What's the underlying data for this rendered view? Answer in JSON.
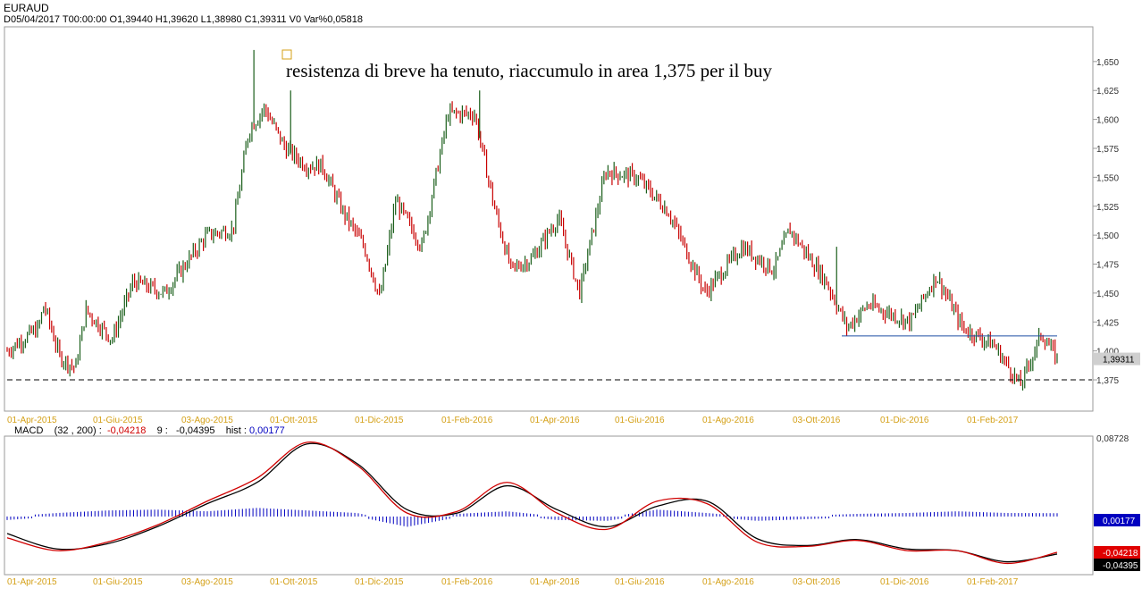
{
  "header": {
    "symbol": "EURAUD",
    "fields": [
      {
        "key": "D",
        "value": "05/04/2017"
      },
      {
        "key": "T",
        "value": "00:00:00"
      },
      {
        "key": "O",
        "value": "1,39440"
      },
      {
        "key": "H",
        "value": "1,39620"
      },
      {
        "key": "L",
        "value": "1,38980"
      },
      {
        "key": "C",
        "value": "1,39311"
      },
      {
        "key": "V",
        "value": "0"
      },
      {
        "key": "Var%",
        "value": "0,05818"
      }
    ]
  },
  "annotation": "resistenza di breve ha tenuto, riaccumulo in area 1,375 per il buy",
  "price_tag": "1,39311",
  "macd_header": {
    "label": "MACD",
    "params": "(32 , 200) :",
    "macd_value": "-0,04218",
    "signal_label": "9 :",
    "signal_value": "-0,04395",
    "hist_label": "hist :",
    "hist_value": "0,00177"
  },
  "macd_tags": {
    "top": "0,08728",
    "hist": "0,00177",
    "macd": "-0,04218",
    "signal": "-0,04395"
  },
  "colors": {
    "up": "#1a5e1a",
    "down": "#c80000",
    "axis_label": "#d4a017",
    "hist": "#0000c0",
    "macd": "#d00000",
    "signal": "#000000"
  },
  "chart_data": [
    {
      "type": "candlestick",
      "title": "EURAUD",
      "x_ticks": [
        "01-Apr-2015",
        "01-Giu-2015",
        "03-Ago-2015",
        "01-Ott-2015",
        "01-Dic-2015",
        "01-Feb-2016",
        "01-Apr-2016",
        "01-Giu-2016",
        "01-Ago-2016",
        "03-Ott-2016",
        "01-Dic-2016",
        "01-Feb-2017"
      ],
      "y_ticks": [
        "1,650",
        "1,625",
        "1,600",
        "1,575",
        "1,550",
        "1,525",
        "1,500",
        "1,475",
        "1,450",
        "1,425",
        "1,400",
        "1,375"
      ],
      "ylim": [
        1.348,
        1.68
      ],
      "grid": false,
      "last_close": 1.39311,
      "support_level": 1.375,
      "resistance_level": 1.413,
      "path": [
        {
          "t": 0,
          "p": 1.4
        },
        {
          "t": 0.03,
          "p": 1.42
        },
        {
          "t": 0.035,
          "p": 1.44
        },
        {
          "t": 0.05,
          "p": 1.395
        },
        {
          "t": 0.065,
          "p": 1.385
        },
        {
          "t": 0.075,
          "p": 1.435
        },
        {
          "t": 0.1,
          "p": 1.41
        },
        {
          "t": 0.12,
          "p": 1.46
        },
        {
          "t": 0.15,
          "p": 1.45
        },
        {
          "t": 0.19,
          "p": 1.5
        },
        {
          "t": 0.215,
          "p": 1.505
        },
        {
          "t": 0.23,
          "p": 1.59
        },
        {
          "t": 0.245,
          "p": 1.61
        },
        {
          "t": 0.265,
          "p": 1.575
        },
        {
          "t": 0.285,
          "p": 1.56
        },
        {
          "t": 0.3,
          "p": 1.56
        },
        {
          "t": 0.32,
          "p": 1.52
        },
        {
          "t": 0.34,
          "p": 1.49
        },
        {
          "t": 0.355,
          "p": 1.445
        },
        {
          "t": 0.37,
          "p": 1.53
        },
        {
          "t": 0.395,
          "p": 1.49
        },
        {
          "t": 0.42,
          "p": 1.605
        },
        {
          "t": 0.445,
          "p": 1.605
        },
        {
          "t": 0.465,
          "p": 1.52
        },
        {
          "t": 0.48,
          "p": 1.47
        },
        {
          "t": 0.5,
          "p": 1.48
        },
        {
          "t": 0.525,
          "p": 1.515
        },
        {
          "t": 0.545,
          "p": 1.45
        },
        {
          "t": 0.57,
          "p": 1.555
        },
        {
          "t": 0.6,
          "p": 1.55
        },
        {
          "t": 0.63,
          "p": 1.52
        },
        {
          "t": 0.665,
          "p": 1.45
        },
        {
          "t": 0.7,
          "p": 1.49
        },
        {
          "t": 0.73,
          "p": 1.47
        },
        {
          "t": 0.745,
          "p": 1.505
        },
        {
          "t": 0.78,
          "p": 1.46
        },
        {
          "t": 0.8,
          "p": 1.42
        },
        {
          "t": 0.82,
          "p": 1.44
        },
        {
          "t": 0.86,
          "p": 1.425
        },
        {
          "t": 0.885,
          "p": 1.465
        },
        {
          "t": 0.91,
          "p": 1.42
        },
        {
          "t": 0.94,
          "p": 1.405
        },
        {
          "t": 0.965,
          "p": 1.37
        },
        {
          "t": 0.985,
          "p": 1.415
        },
        {
          "t": 1.0,
          "p": 1.393
        }
      ]
    },
    {
      "type": "line",
      "title": "MACD (32 , 200)",
      "x_ticks": [
        "01-Apr-2015",
        "01-Giu-2015",
        "03-Ago-2015",
        "01-Ott-2015",
        "01-Dic-2015",
        "01-Feb-2016",
        "01-Apr-2016",
        "01-Giu-2016",
        "01-Ago-2016",
        "03-Ott-2016",
        "01-Dic-2016",
        "01-Feb-2017"
      ],
      "ylim": [
        -0.065,
        0.09
      ],
      "series": [
        {
          "name": "MACD",
          "values": [
            -0.025,
            -0.04,
            -0.03,
            -0.01,
            0.018,
            0.045,
            0.087,
            0.06,
            0.004,
            0.006,
            0.04,
            0.004,
            -0.015,
            0.018,
            0.015,
            -0.03,
            -0.035,
            -0.028,
            -0.04,
            -0.04,
            -0.055,
            -0.042
          ]
        },
        {
          "name": "Signal",
          "values": [
            -0.02,
            -0.038,
            -0.032,
            -0.012,
            0.015,
            0.04,
            0.085,
            0.062,
            0.008,
            0.004,
            0.036,
            0.008,
            -0.012,
            0.012,
            0.018,
            -0.026,
            -0.034,
            -0.027,
            -0.038,
            -0.04,
            -0.053,
            -0.044
          ]
        },
        {
          "name": "hist",
          "values": [
            -0.002,
            0.002,
            0.005,
            0.006,
            0.004,
            0.008,
            0.005,
            0.002,
            -0.01,
            0.001,
            0.004,
            -0.002,
            -0.003,
            0.006,
            0.002,
            -0.003,
            -0.001,
            0.001,
            0.002,
            0.004,
            0.002,
            0.00177
          ]
        }
      ]
    }
  ]
}
